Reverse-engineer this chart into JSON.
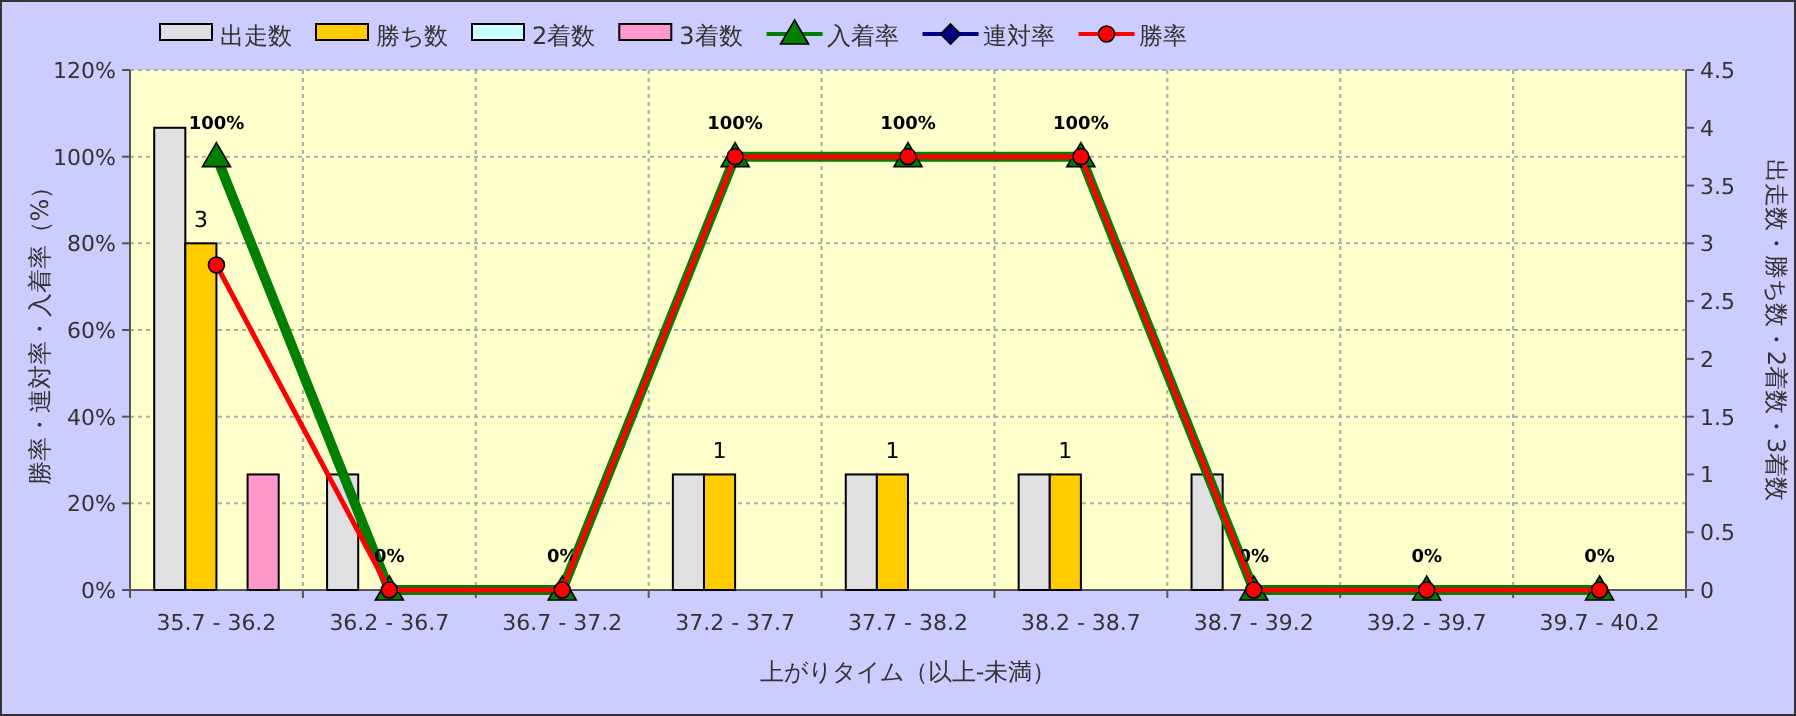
{
  "chart_data": {
    "type": "bar",
    "xlabel": "上がりタイム（以上-未満）",
    "ylabel": "勝率・連対率・入着率（%）",
    "y2label": "出走数・勝ち数・2着数・3着数",
    "categories": [
      "35.7 - 36.2",
      "36.2 - 36.7",
      "36.7 - 37.2",
      "37.2 - 37.7",
      "37.7 - 38.2",
      "38.2 - 38.7",
      "38.7 - 39.2",
      "39.2 - 39.7",
      "39.7 - 40.2"
    ],
    "series": [
      {
        "name": "出走数",
        "axis": "y2",
        "color": "#e0e0e0",
        "values": [
          4,
          1,
          0,
          1,
          1,
          1,
          1,
          0,
          0
        ]
      },
      {
        "name": "勝ち数",
        "axis": "y2",
        "color": "#ffcc00",
        "values": [
          3,
          0,
          0,
          1,
          1,
          1,
          0,
          0,
          0
        ],
        "value_labels": [
          "3",
          null,
          null,
          "1",
          "1",
          "1",
          null,
          null,
          null
        ]
      },
      {
        "name": "2着数",
        "axis": "y2",
        "color": "#ccffff",
        "values": [
          0,
          0,
          0,
          0,
          0,
          0,
          0,
          0,
          0
        ]
      },
      {
        "name": "3着数",
        "axis": "y2",
        "color": "#ff99cc",
        "values": [
          1,
          0,
          0,
          0,
          0,
          0,
          0,
          0,
          0
        ]
      },
      {
        "name": "入着率",
        "type": "line",
        "axis": "y",
        "color": "#008000",
        "marker": "triangle",
        "values": [
          100,
          0,
          0,
          100,
          100,
          100,
          0,
          0,
          0
        ],
        "value_labels": [
          "100%",
          "0%",
          "0%",
          "100%",
          "100%",
          "100%",
          "0%",
          "0%",
          "0%"
        ]
      },
      {
        "name": "連対率",
        "type": "line",
        "axis": "y",
        "color": "#000080",
        "marker": "diamond",
        "values": [
          null,
          null,
          null,
          null,
          null,
          null,
          null,
          null,
          null
        ]
      },
      {
        "name": "勝率",
        "type": "line",
        "axis": "y",
        "color": "#ff0000",
        "marker": "circle",
        "values": [
          75,
          0,
          0,
          100,
          100,
          100,
          0,
          0,
          0
        ]
      }
    ],
    "ylim": [
      0,
      120
    ],
    "yticks": [
      {
        "value": 0,
        "label": "0%"
      },
      {
        "value": 20,
        "label": "20%"
      },
      {
        "value": 40,
        "label": "40%"
      },
      {
        "value": 60,
        "label": "60%"
      },
      {
        "value": 80,
        "label": "80%"
      },
      {
        "value": 100,
        "label": "100%"
      },
      {
        "value": 120,
        "label": "120%"
      }
    ],
    "y2lim": [
      0,
      4.5
    ],
    "y2ticks": [
      0,
      0.5,
      1,
      1.5,
      2,
      2.5,
      3,
      3.5,
      4,
      4.5
    ],
    "grid": true,
    "legend": "top"
  }
}
